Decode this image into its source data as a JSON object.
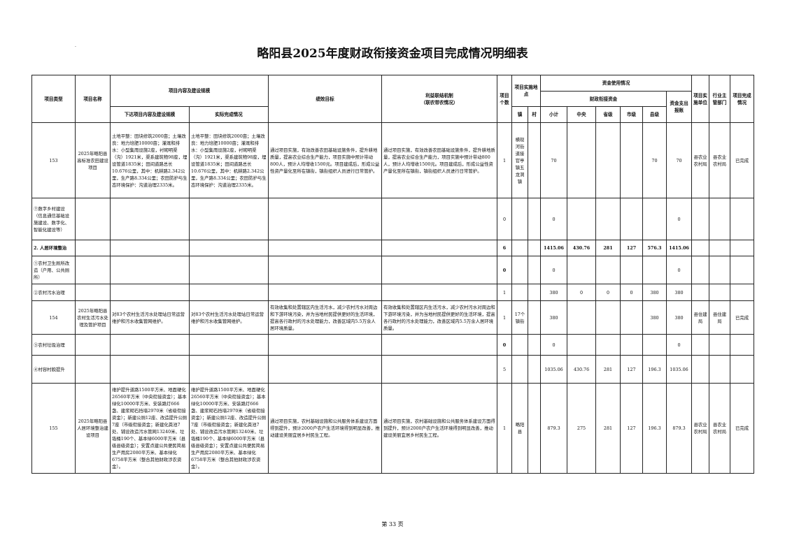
{
  "title": "略阳县2025年度财政衔接资金项目完成情况明细表",
  "page": "第 33 页",
  "headers": {
    "type": "项目类型",
    "name": "项目名称",
    "content": "项目内容及建设规模",
    "content_plan": "下达项目内容及建设规模",
    "content_actual": "实际完成情况",
    "goal": "绩效目标",
    "link": "利益联结机制\n（联农带农情况）",
    "count": "项目个数",
    "location": "项目实施地点",
    "town": "镇",
    "village": "村",
    "funds": "资金使用情况",
    "fiscal": "财政衔接资金",
    "subtotal": "小计",
    "central": "中央",
    "province": "省级",
    "city": "市级",
    "county": "县级",
    "paid": "资金支出报账",
    "unit": "项目实施单位",
    "dept": "行业主管部门",
    "status": "项目完成情况"
  },
  "rows": [
    {
      "type": "153",
      "name": "2025年略阳县高标准农田建设项目",
      "plan": "土地平整：田块修筑2000亩；土壤改良：地力培肥10000亩；灌溉和排水：小型集雨设施2座，衬砌明渠（沟）1921米，渠系建筑物98座，埋设管道1835米；田间道路总长10.676公里，其中：机耕路2.342公里，生产路8.334公里；农田防护与生态环境保护：沟道治理2335米。",
      "actual": "土地平整：田块修筑2000亩；土壤改良：地力培肥10000亩；灌溉和排水：小型集雨设施2座，衬砌明渠（沟）1921米，渠系建筑物98座，埋设管道1835米；田间道路总长10.676公里，其中：机耕路2.342公里，生产路8.334公里；农田防护与生态环境保护：沟道治理2335米。",
      "goal": "通过项目实施，有效改善农田基础设施条件，提升耕地质量，提高农业综合生产能力，项目实施中预计带动800人，预计人均增收1500元。项目建成后，形成公益性资产量化至所在镇街，镇街组织人员进行日常管护。",
      "link": "通过项目实施，有效改善农田基础设施条件，提升耕地质量，提高农业综合生产能力，项目实施中预计带动800人，预计人均增收1500元。项目建成后，形成公益性资产量化至所在镇街，镇街组织人员进行日常管护。",
      "count": "1",
      "town": "横现河街道接官亭镇五龙洞镇",
      "village": "",
      "subtotal": "70",
      "central": "",
      "province": "",
      "city": "",
      "county": "70",
      "paid": "70",
      "unit": "县农业农村局",
      "dept": "县农业农村局",
      "status": "已完成"
    },
    {
      "type": "⑦数字乡村建设（信息通信基础设施建设、数字化、智能化建设等）",
      "name": "",
      "plan": "",
      "actual": "",
      "goal": "",
      "link": "",
      "count": "0",
      "town": "",
      "village": "",
      "subtotal": "0",
      "central": "",
      "province": "",
      "city": "",
      "county": "",
      "paid": "0",
      "unit": "",
      "dept": "",
      "status": ""
    },
    {
      "type": "2. 人居环境整治",
      "name": "",
      "plan": "",
      "actual": "",
      "goal": "",
      "link": "",
      "count": "6",
      "town": "",
      "village": "",
      "subtotal": "1415.06",
      "central": "430.76",
      "province": "281",
      "city": "127",
      "county": "576.3",
      "paid": "1415.06",
      "unit": "",
      "dept": "",
      "status": "",
      "bold": true
    },
    {
      "type": "①农村卫生厕所改造（户用、公共厕所）",
      "name": "",
      "plan": "",
      "actual": "",
      "goal": "",
      "link": "",
      "count": "0",
      "town": "",
      "village": "",
      "subtotal": "0",
      "central": "",
      "province": "",
      "city": "",
      "county": "",
      "paid": "0",
      "unit": "",
      "dept": "",
      "status": ""
    },
    {
      "type": "②农村污水治理",
      "name": "",
      "plan": "",
      "actual": "",
      "goal": "",
      "link": "",
      "count": "1",
      "town": "",
      "village": "",
      "subtotal": "380",
      "central": "0",
      "province": "0",
      "city": "0",
      "county": "380",
      "paid": "380",
      "unit": "",
      "dept": "",
      "status": ""
    },
    {
      "type": "154",
      "name": "2025年略阳县农村生活污水处理及管护项目",
      "plan": "对83个农村生活污水处理站日常运营维护和污水收集管网维护。",
      "actual": "对83个农村生活污水处理站日常运营维护和污水收集管网维护。",
      "goal": "有效收集和处置辖区内生活污水，减少农村污水对周边和下游环境污染，并为当地村民提供更好的生活环境，提高各行政村的污水处理能力，改善区域内5.5万余人居环境质量。",
      "link": "有效收集和处置辖区内生活污水，减少农村污水对周边和下游环境污染，并为当地村民提供更好的生活环境，提高各行政村的污水处理能力，改善区域内5.5万余人居环境质量。",
      "count": "1",
      "town": "17个镇街",
      "village": "",
      "subtotal": "380",
      "central": "",
      "province": "",
      "city": "",
      "county": "380",
      "paid": "380",
      "unit": "县住建局",
      "dept": "县住建局",
      "status": "已完成"
    },
    {
      "type": "③农村垃圾治理",
      "name": "",
      "plan": "",
      "actual": "",
      "goal": "",
      "link": "",
      "count": "0",
      "town": "",
      "village": "",
      "subtotal": "0",
      "central": "",
      "province": "",
      "city": "",
      "county": "",
      "paid": "0",
      "unit": "",
      "dept": "",
      "status": ""
    },
    {
      "type": "④村容村貌提升",
      "name": "",
      "plan": "",
      "actual": "",
      "goal": "",
      "link": "",
      "count": "5",
      "town": "",
      "village": "",
      "subtotal": "1035.06",
      "central": "430.76",
      "province": "281",
      "city": "127",
      "county": "196.3",
      "paid": "1035.06",
      "unit": "",
      "dept": "",
      "status": ""
    },
    {
      "type": "155",
      "name": "2025年略阳县人居环境整治建设项目",
      "plan": "维护提升道路1500平方米、地面硬化26560平方米（中央衔接资金）；基本绿化10000平方米、安装路灯666盏、建浆砌石挡墙2970米（省级衔接资金）；新建公厕12座、改造提升公厕7座（市级衔接资金；新建化粪池7处、铺设改造污水管网13240米、垃圾桶190个、基本绿6000平方米（县级县级资金）；安置点建公共便民简易生产用房2080平方米、基本绿化6758平方米（整合其他财政涉农资金）。",
      "actual": "维护提升道路1500平方米、地面硬化26560平方米（中央衔接资金）；基本绿化10000平方米、安装路灯666盏、建浆砌石挡墙2970米（省级衔接资金）；新建公厕12座、改造提升公厕7座（市级衔接资金；新建化粪池7处、铺设改造污水管网13240米、垃圾桶190个、基本绿6000平方米（县级县级资金）；安置点建公共便民简易生产用房2080平方米、基本绿化6758平方米（整合其他财政涉农资金）。",
      "goal": "通过项目实施，农村基础设施和公共服务体系建设方面得到提升，预计2000户农户生活环境得到明显改善，推动建设美丽宜居乡村民生工程。",
      "link": "通过项目实施，农村基础设施和公共服务体系建设方面得到提升，预计2000户农户生活环境得到明显改善，推动建设美丽宜居乡村民生工程。",
      "count": "1",
      "town": "略阳县",
      "village": "",
      "subtotal": "879.3",
      "central": "275",
      "province": "281",
      "city": "127",
      "county": "196.3",
      "paid": "879.3",
      "unit": "县农业农村局",
      "dept": "县农业农村局",
      "status": "已完成"
    }
  ]
}
